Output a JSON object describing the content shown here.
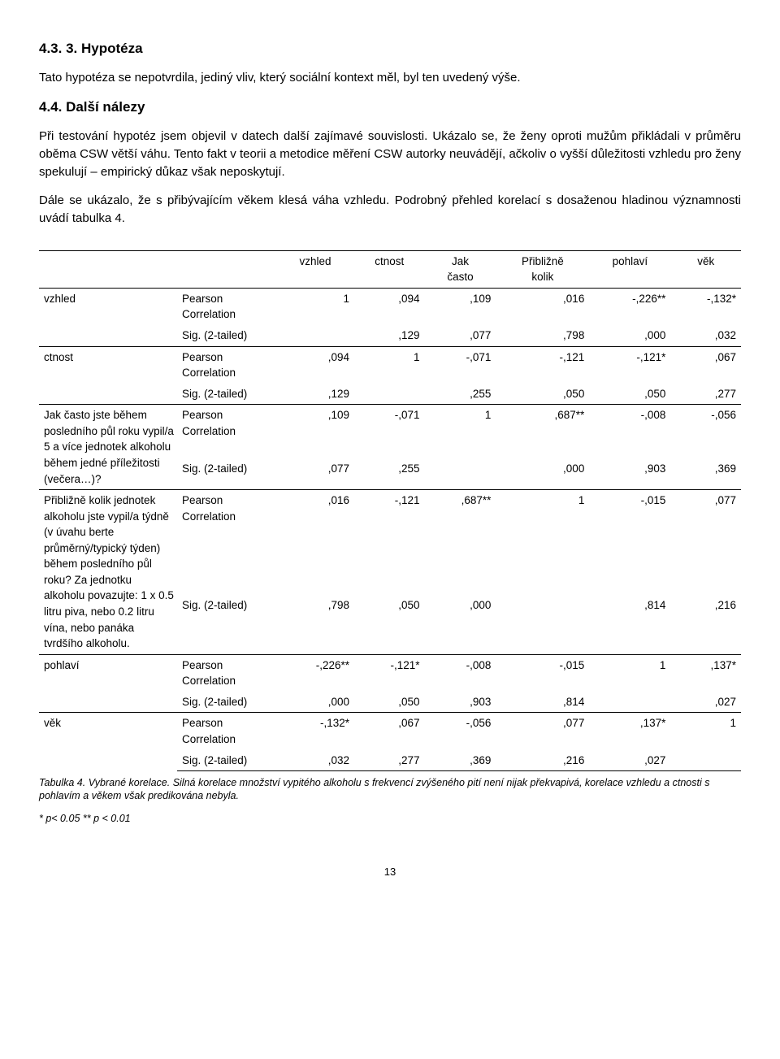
{
  "h1": "4.3. 3. Hypotéza",
  "p1": "Tato hypotéza se nepotvrdila, jediný vliv, který sociální kontext měl, byl ten uvedený výše.",
  "h2": "4.4. Další nálezy",
  "p2": "Při testování hypotéz jsem objevil v datech další zajímavé souvislosti. Ukázalo se, že ženy oproti mužům přikládali v průměru oběma CSW větší váhu. Tento fakt v teorii a metodice měření CSW autorky neuvádějí, ačkoliv o vyšší důležitosti vzhledu pro ženy spekulují – empirický důkaz však neposkytují.",
  "p3": "Dále se ukázalo, že s přibývajícím věkem klesá váha vzhledu. Podrobný přehled korelací s dosaženou hladinou významnosti uvádí tabulka 4.",
  "table": {
    "col_headers": [
      "vzhled",
      "ctnost",
      "Jak\nčasto",
      "Přibližně\nkolik",
      "pohlaví",
      "věk"
    ],
    "stat_labels": {
      "pearson": "Pearson\nCorrelation",
      "sig": "Sig. (2-tailed)"
    },
    "vars": [
      {
        "name": "vzhled",
        "pearson": [
          "1",
          ",094",
          ",109",
          ",016",
          "-,226**",
          "-,132*"
        ],
        "sig": [
          "",
          ",129",
          ",077",
          ",798",
          ",000",
          ",032"
        ]
      },
      {
        "name": "ctnost",
        "pearson": [
          ",094",
          "1",
          "-,071",
          "-,121",
          "-,121*",
          ",067"
        ],
        "sig": [
          ",129",
          "",
          ",255",
          ",050",
          ",050",
          ",277"
        ]
      },
      {
        "name": "Jak často jste během posledního půl roku vypil/a 5 a více jednotek alkoholu během jedné příležitosti (večera…)?",
        "pearson": [
          ",109",
          "-,071",
          "1",
          ",687**",
          "-,008",
          "-,056"
        ],
        "sig": [
          ",077",
          ",255",
          "",
          ",000",
          ",903",
          ",369"
        ]
      },
      {
        "name": "Přibližně kolik jednotek alkoholu jste vypil/a týdně (v úvahu berte průměrný/typický týden) během posledního půl roku? Za jednotku alkoholu povazujte: 1 x 0.5 litru piva, nebo 0.2 litru vína, nebo panáka tvrdšího alkoholu.",
        "pearson": [
          ",016",
          "-,121",
          ",687**",
          "1",
          "-,015",
          ",077"
        ],
        "sig": [
          ",798",
          ",050",
          ",000",
          "",
          ",814",
          ",216"
        ]
      },
      {
        "name": "pohlaví",
        "pearson": [
          "-,226**",
          "-,121*",
          "-,008",
          "-,015",
          "1",
          ",137*"
        ],
        "sig": [
          ",000",
          ",050",
          ",903",
          ",814",
          "",
          ",027"
        ]
      },
      {
        "name": "věk",
        "pearson": [
          "-,132*",
          ",067",
          "-,056",
          ",077",
          ",137*",
          "1"
        ],
        "sig": [
          ",032",
          ",277",
          ",369",
          ",216",
          ",027",
          ""
        ]
      }
    ]
  },
  "caption": "Tabulka 4. Vybrané korelace. Silná korelace množství vypitého alkoholu s frekvencí zvýšeného pití není nijak překvapivá, korelace vzhledu a ctnosti s pohlavím a věkem však predikována nebyla.",
  "sig_note": "* p< 0.05 ** p < 0.01",
  "page_num": "13"
}
